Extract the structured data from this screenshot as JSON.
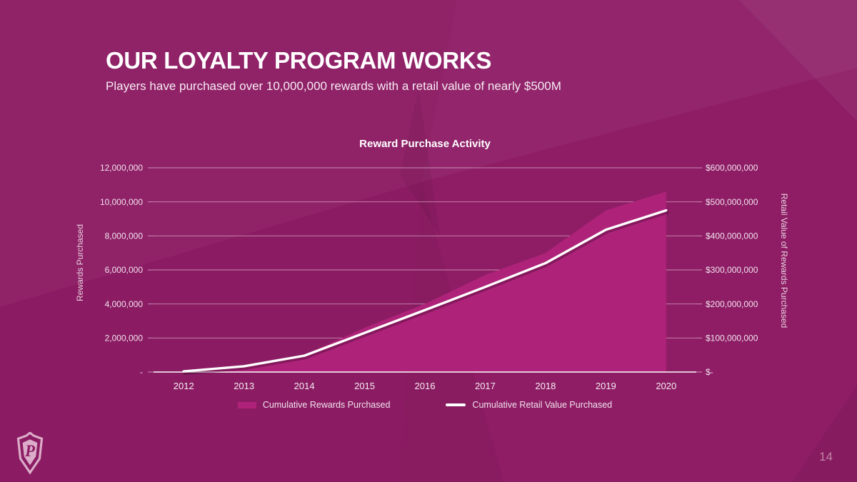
{
  "slide": {
    "title": "OUR LOYALTY PROGRAM WORKS",
    "subtitle": "Players have purchased over 10,000,000 rewards with a retail value of nearly $500M",
    "page_number": "14",
    "logo_letter": "P"
  },
  "colors": {
    "background": "#8e1d65",
    "area_fill": "#ae2379",
    "line": "#ffffff",
    "gridline": "rgba(243,214,233,0.6)",
    "tick_text": "#f2e2ee",
    "x_label_text": "#f6ecf2",
    "axis_line": "#ffffff"
  },
  "chart_data": {
    "type": "area",
    "title": "Reward Purchase Activity",
    "categories": [
      "2012",
      "2013",
      "2014",
      "2015",
      "2016",
      "2017",
      "2018",
      "2019",
      "2020"
    ],
    "series": [
      {
        "name": "Cumulative Rewards Purchased",
        "type": "area",
        "axis": "left",
        "values": [
          50000,
          350000,
          1000000,
          2600000,
          4000000,
          5700000,
          7000000,
          9500000,
          10600000
        ]
      },
      {
        "name": "Cumulative Retail Value Purchased",
        "type": "line",
        "axis": "right",
        "values": [
          2000000,
          17000000,
          48000000,
          115000000,
          182000000,
          250000000,
          320000000,
          418000000,
          475000000
        ]
      }
    ],
    "left_axis": {
      "label": "Rewards Purchased",
      "min": 0,
      "max": 12000000,
      "ticks": [
        "12,000,000",
        "10,000,000",
        "8,000,000",
        "6,000,000",
        "4,000,000",
        "2,000,000",
        "-"
      ]
    },
    "right_axis": {
      "label": "Retail Value of Rewards Purchased",
      "min": 0,
      "max": 600000000,
      "ticks": [
        "$600,000,000",
        "$500,000,000",
        "$400,000,000",
        "$300,000,000",
        "$200,000,000",
        "$100,000,000",
        "$-"
      ]
    },
    "grid": true,
    "legend_position": "bottom"
  }
}
